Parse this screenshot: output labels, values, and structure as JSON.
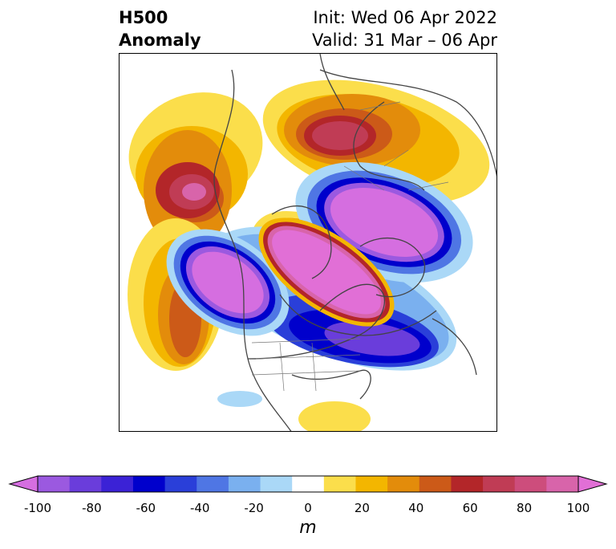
{
  "title": {
    "left_line1": "H500",
    "left_line2": "Anomaly",
    "right_line1": "Init: Wed 06 Apr 2022",
    "right_line2": "Valid: 31 Mar – 06 Apr"
  },
  "colorbar": {
    "unit": "m",
    "ticks": [
      "-100",
      "-80",
      "-60",
      "-40",
      "-20",
      "0",
      "20",
      "40",
      "60",
      "80",
      "100"
    ],
    "colors": [
      "#d56ee0",
      "#9b59e0",
      "#6a3ddb",
      "#3b22d6",
      "#0000cc",
      "#2a3fd9",
      "#4f76e4",
      "#7ab0ef",
      "#aad8f7",
      "#ffffff",
      "#fbde4b",
      "#f3b600",
      "#e38c0b",
      "#cc5a18",
      "#b32629",
      "#c03c55",
      "#cd4d7c",
      "#d864aa",
      "#e16fd6"
    ]
  },
  "map": {
    "region": "Northern Hemisphere polar stereographic",
    "field": "500 hPa geopotential height anomaly"
  }
}
